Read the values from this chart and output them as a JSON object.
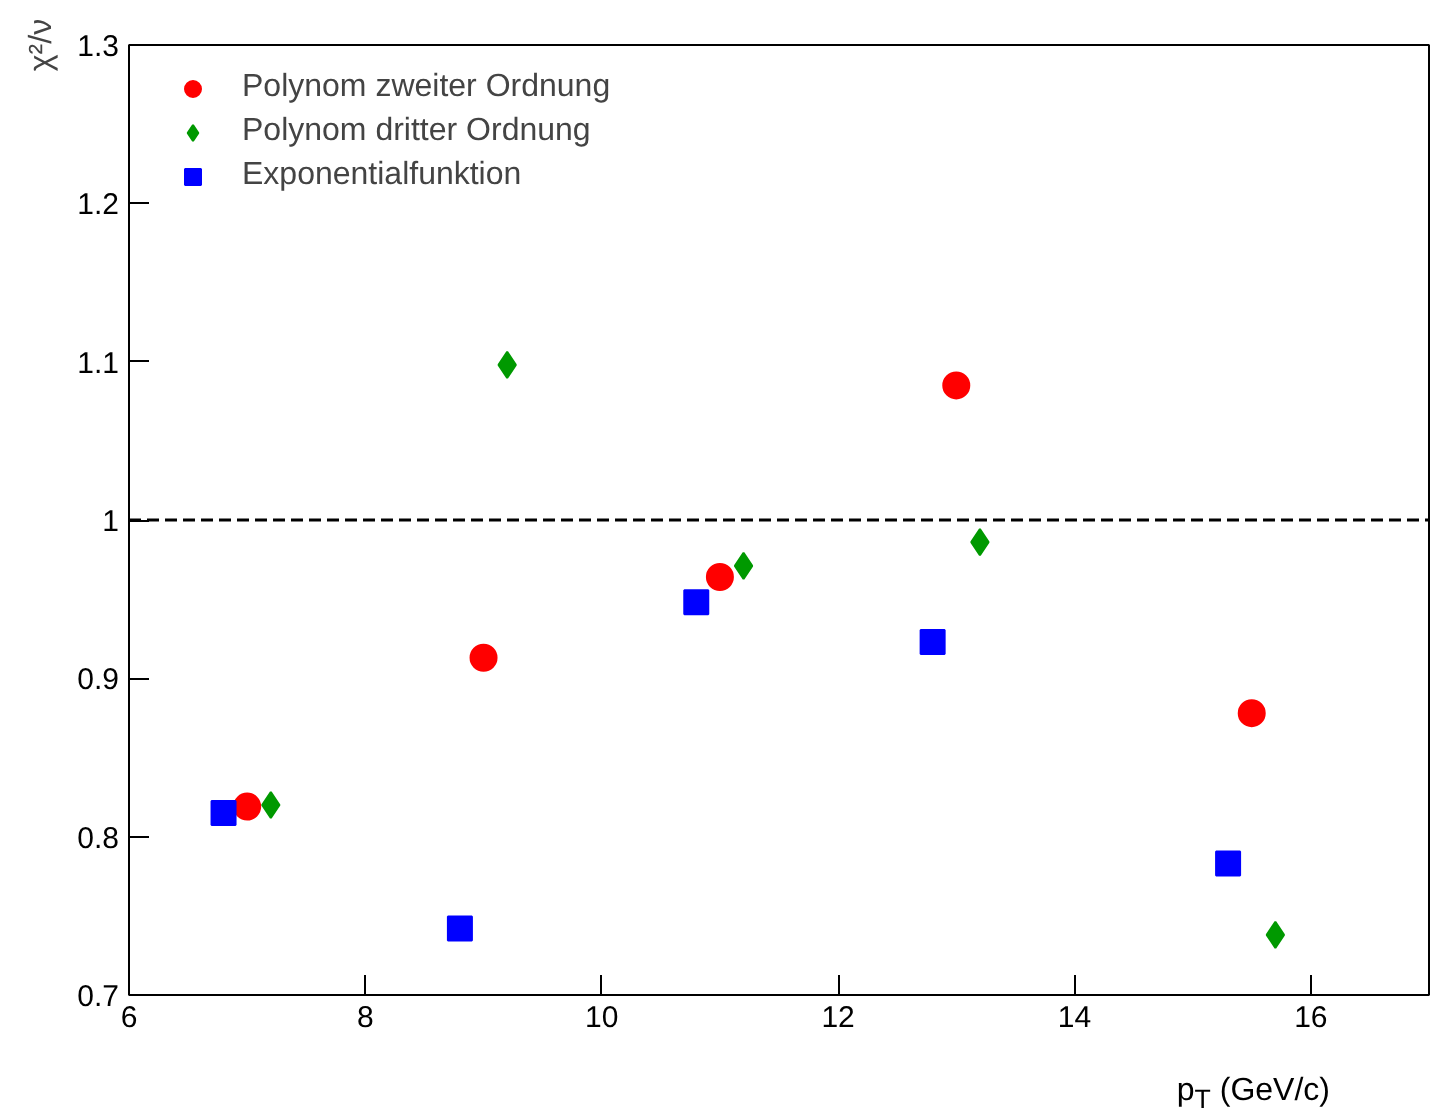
{
  "chart_data": {
    "type": "scatter",
    "xlabel": "p$_{T}$ (GeV/c)",
    "ylabel": "χ²/ν",
    "xlim": [
      6,
      17
    ],
    "ylim": [
      0.7,
      1.3
    ],
    "xticks": [
      6,
      8,
      10,
      12,
      14,
      16
    ],
    "yticks": [
      0.7,
      0.8,
      0.9,
      1,
      1.1,
      1.2,
      1.3
    ],
    "grid": false,
    "legend": "top left",
    "ref_lines": [
      {
        "axis": "y",
        "value": 1,
        "line_style": "dashed",
        "color": "#000000"
      }
    ],
    "series": [
      {
        "name": "Polynom zweiter Ordnung",
        "color": "#ff0000",
        "marker": "circle",
        "x": [
          7.0,
          9.0,
          11.0,
          13.0,
          15.5
        ],
        "values": [
          0.819,
          0.913,
          0.964,
          1.085,
          0.878
        ]
      },
      {
        "name": "Polynom dritter Ordnung",
        "color": "#009900",
        "marker": "diamond",
        "x": [
          7.2,
          9.2,
          11.2,
          13.2,
          15.7
        ],
        "values": [
          0.82,
          1.098,
          0.971,
          0.986,
          0.738
        ]
      },
      {
        "name": "Exponentialfunktion",
        "color": "#0000ff",
        "marker": "square",
        "x": [
          6.8,
          8.8,
          10.8,
          12.8,
          15.3
        ],
        "values": [
          0.815,
          0.742,
          0.948,
          0.923,
          0.783
        ]
      }
    ]
  }
}
